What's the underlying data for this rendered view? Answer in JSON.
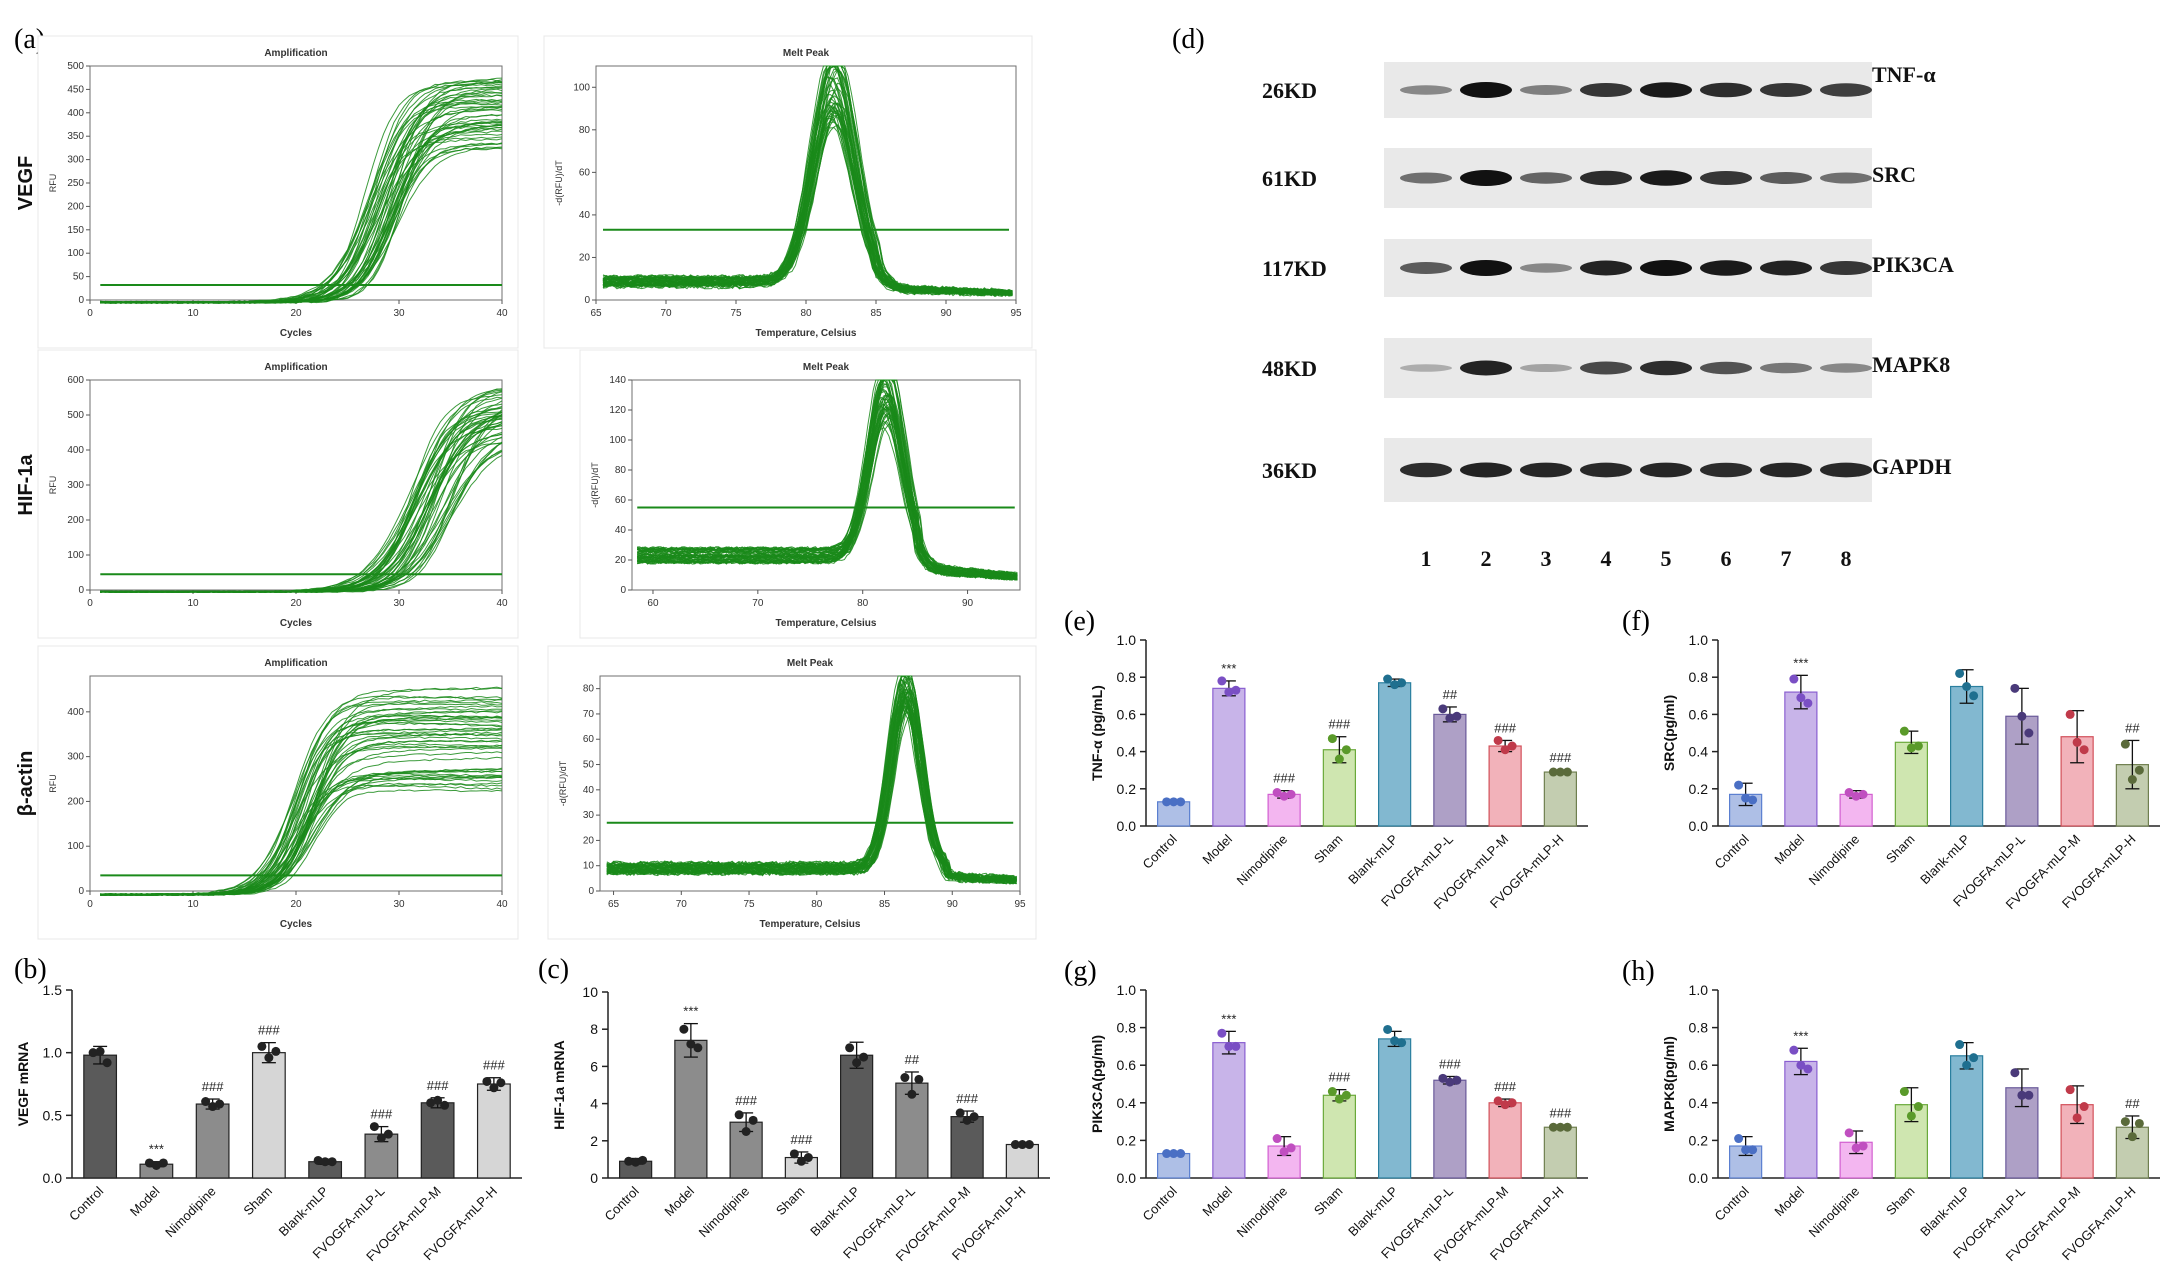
{
  "panel_labels": {
    "a": "(a)",
    "b": "(b)",
    "c": "(c)",
    "d": "(d)",
    "e": "(e)",
    "f": "(f)",
    "g": "(g)",
    "h": "(h)"
  },
  "colors": {
    "pcr_green": "#1a8a1a",
    "gray_dark": "#5a5a5a",
    "gray_mid": "#8c8c8c",
    "gray_light": "#d6d6d6",
    "control": "#aebfe6",
    "model": "#c8b4e9",
    "nimodipine": "#f3b6f0",
    "sham": "#cfe6b0",
    "blank": "#82b8d0",
    "fvo_l": "#aea0c6",
    "fvo_m": "#f2b2ba",
    "fvo_h": "#c3cdb0"
  },
  "chart_data": [
    {
      "id": "vegf-amp",
      "type": "line",
      "title": "Amplification",
      "row_label": "VEGF",
      "xlabel": "Cycles",
      "ylabel": "RFU",
      "xlim": [
        0,
        40
      ],
      "ylim": [
        0,
        500
      ],
      "xticks": [
        0,
        10,
        20,
        30,
        40
      ],
      "yticks": [
        0,
        50,
        100,
        150,
        200,
        250,
        300,
        350,
        400,
        450,
        500
      ],
      "threshold": 32,
      "baseline": -5,
      "curve": {
        "family": "sigmoid",
        "count": 48,
        "midpoint_range": [
          26.5,
          30.5
        ],
        "plateau_range": [
          330,
          480
        ],
        "slope_range": [
          1.4,
          2.2
        ]
      }
    },
    {
      "id": "vegf-melt",
      "type": "line",
      "title": "Melt Peak",
      "xlabel": "Temperature, Celsius",
      "ylabel": "-d(RFU)/dT",
      "xlim": [
        65,
        95
      ],
      "ylim": [
        0,
        110
      ],
      "xticks": [
        65,
        70,
        75,
        80,
        85,
        90,
        95
      ],
      "yticks": [
        0,
        20,
        40,
        60,
        80,
        100
      ],
      "threshold": 33,
      "curve": {
        "family": "peak",
        "count": 48,
        "baseline": [
          6,
          11
        ],
        "peak_center_range": [
          81.6,
          82.4
        ],
        "peak_height_range": [
          75,
          110
        ],
        "width": 1.5
      }
    },
    {
      "id": "hif-amp",
      "type": "line",
      "title": "Amplification",
      "row_label": "HIF-1a",
      "xlabel": "Cycles",
      "ylabel": "RFU",
      "xlim": [
        0,
        40
      ],
      "ylim": [
        0,
        600
      ],
      "xticks": [
        0,
        10,
        20,
        30,
        40
      ],
      "yticks": [
        0,
        100,
        200,
        300,
        400,
        500,
        600
      ],
      "threshold": 45,
      "baseline": -5,
      "curve": {
        "family": "sigmoid",
        "count": 48,
        "midpoint_range": [
          31,
          35.5
        ],
        "plateau_range": [
          430,
          600
        ],
        "slope_range": [
          1.5,
          2.4
        ]
      }
    },
    {
      "id": "hif-melt",
      "type": "line",
      "title": "Melt Peak",
      "xlabel": "Temperature, Celsius",
      "ylabel": "-d(RFU)/dT",
      "xlim": [
        58,
        95
      ],
      "ylim": [
        0,
        140
      ],
      "xticks": [
        60,
        70,
        80,
        90
      ],
      "yticks": [
        0,
        20,
        40,
        60,
        80,
        100,
        120,
        140
      ],
      "threshold": 55,
      "curve": {
        "family": "peak",
        "count": 48,
        "baseline": [
          18,
          28
        ],
        "peak_center_range": [
          81.8,
          82.6
        ],
        "peak_height_range": [
          90,
          132
        ],
        "width": 1.6
      }
    },
    {
      "id": "actin-amp",
      "type": "line",
      "title": "Amplification",
      "row_label": "β-actin",
      "xlabel": "Cycles",
      "ylabel": "RFU",
      "xlim": [
        0,
        40
      ],
      "ylim": [
        0,
        480
      ],
      "xticks": [
        0,
        10,
        20,
        30,
        40
      ],
      "yticks": [
        0,
        100,
        200,
        300,
        400
      ],
      "threshold": 35,
      "baseline": -8,
      "curve": {
        "family": "sigmoid",
        "count": 48,
        "midpoint_range": [
          19.5,
          22
        ],
        "plateau_range": [
          230,
          460
        ],
        "slope_range": [
          1.3,
          1.9
        ]
      }
    },
    {
      "id": "actin-melt",
      "type": "line",
      "title": "Melt Peak",
      "xlabel": "Temperature, Celsius",
      "ylabel": "-d(RFU)/dT",
      "xlim": [
        64,
        95
      ],
      "ylim": [
        0,
        85
      ],
      "xticks": [
        65,
        70,
        75,
        80,
        85,
        90,
        95
      ],
      "yticks": [
        0,
        10,
        20,
        30,
        40,
        50,
        60,
        70,
        80
      ],
      "threshold": 27,
      "curve": {
        "family": "peak",
        "count": 48,
        "baseline": [
          7,
          11
        ],
        "peak_center_range": [
          86.2,
          86.9
        ],
        "peak_height_range": [
          60,
          80
        ],
        "width": 1.1
      }
    },
    {
      "id": "b",
      "type": "bar",
      "ylabel": "VEGF mRNA",
      "ylim": [
        0,
        1.5
      ],
      "yticks": [
        0.0,
        0.5,
        1.0,
        1.5
      ],
      "scheme": "gray",
      "categories": [
        "Control",
        "Model",
        "Nimodipine",
        "Sham",
        "Blank-mLP",
        "FVOGFA-mLP-L",
        "FVOGFA-mLP-M",
        "FVOGFA-mLP-H"
      ],
      "values": [
        0.98,
        0.11,
        0.59,
        1.0,
        0.13,
        0.35,
        0.6,
        0.75
      ],
      "errors": [
        0.07,
        0.02,
        0.04,
        0.08,
        0.02,
        0.06,
        0.04,
        0.05
      ],
      "points": [
        [
          1.0,
          1.01,
          0.92
        ],
        [
          0.12,
          0.1,
          0.12
        ],
        [
          0.61,
          0.57,
          0.59
        ],
        [
          1.05,
          0.96,
          1.01
        ],
        [
          0.14,
          0.13,
          0.13
        ],
        [
          0.41,
          0.32,
          0.35
        ],
        [
          0.6,
          0.62,
          0.58
        ],
        [
          0.77,
          0.72,
          0.76
        ]
      ],
      "annotations": [
        "",
        "***",
        "###",
        "###",
        "",
        "###",
        "###",
        "###"
      ]
    },
    {
      "id": "c",
      "type": "bar",
      "ylabel": "HIF-1a mRNA",
      "ylim": [
        0,
        10
      ],
      "yticks": [
        0,
        2,
        4,
        6,
        8,
        10
      ],
      "scheme": "gray",
      "categories": [
        "Control",
        "Model",
        "Nimodipine",
        "Sham",
        "Blank-mLP",
        "FVOGFA-mLP-L",
        "FVOGFA-mLP-M",
        "FVOGFA-mLP-H"
      ],
      "values": [
        0.9,
        7.4,
        3.0,
        1.1,
        6.6,
        5.1,
        3.3,
        1.8
      ],
      "errors": [
        0.15,
        0.9,
        0.5,
        0.3,
        0.7,
        0.6,
        0.3,
        0.1
      ],
      "points": [
        [
          0.9,
          0.85,
          0.95
        ],
        [
          8.0,
          7.2,
          7.0
        ],
        [
          3.4,
          2.5,
          3.1
        ],
        [
          1.3,
          0.9,
          1.1
        ],
        [
          7.0,
          6.2,
          6.5
        ],
        [
          5.4,
          4.5,
          5.3
        ],
        [
          3.5,
          3.1,
          3.3
        ],
        [
          1.8,
          1.8,
          1.8
        ]
      ],
      "annotations": [
        "",
        "***",
        "###",
        "###",
        "",
        "##",
        "###",
        ""
      ]
    },
    {
      "id": "e",
      "type": "bar",
      "ylabel": "TNF-α (pg/mL)",
      "ylim": [
        0,
        1.0
      ],
      "yticks": [
        0.0,
        0.2,
        0.4,
        0.6,
        0.8,
        1.0
      ],
      "scheme": "color",
      "categories": [
        "Control",
        "Model",
        "Nimodipine",
        "Sham",
        "Blank-mLP",
        "FVOGFA-mLP-L",
        "FVOGFA-mLP-M",
        "FVOGFA-mLP-H"
      ],
      "values": [
        0.13,
        0.74,
        0.17,
        0.41,
        0.77,
        0.6,
        0.43,
        0.29
      ],
      "errors": [
        0.01,
        0.04,
        0.02,
        0.07,
        0.02,
        0.04,
        0.03,
        0.01
      ],
      "points": [
        [
          0.13,
          0.13,
          0.13
        ],
        [
          0.78,
          0.72,
          0.73
        ],
        [
          0.18,
          0.16,
          0.17
        ],
        [
          0.47,
          0.36,
          0.41
        ],
        [
          0.79,
          0.76,
          0.77
        ],
        [
          0.63,
          0.58,
          0.59
        ],
        [
          0.46,
          0.41,
          0.43
        ],
        [
          0.29,
          0.29,
          0.29
        ]
      ],
      "annotations": [
        "",
        "***",
        "###",
        "###",
        "",
        "##",
        "###",
        "###"
      ]
    },
    {
      "id": "f",
      "type": "bar",
      "ylabel": "SRC(pg/ml)",
      "ylim": [
        0,
        1.0
      ],
      "yticks": [
        0.0,
        0.2,
        0.4,
        0.6,
        0.8,
        1.0
      ],
      "scheme": "color",
      "categories": [
        "Control",
        "Model",
        "Nimodipine",
        "Sham",
        "Blank-mLP",
        "FVOGFA-mLP-L",
        "FVOGFA-mLP-M",
        "FVOGFA-mLP-H"
      ],
      "values": [
        0.17,
        0.72,
        0.17,
        0.45,
        0.75,
        0.59,
        0.48,
        0.33
      ],
      "errors": [
        0.06,
        0.09,
        0.02,
        0.06,
        0.09,
        0.15,
        0.14,
        0.13
      ],
      "points": [
        [
          0.22,
          0.15,
          0.14
        ],
        [
          0.79,
          0.69,
          0.66
        ],
        [
          0.18,
          0.16,
          0.17
        ],
        [
          0.51,
          0.42,
          0.43
        ],
        [
          0.82,
          0.75,
          0.7
        ],
        [
          0.74,
          0.59,
          0.5
        ],
        [
          0.6,
          0.45,
          0.41
        ],
        [
          0.44,
          0.25,
          0.3
        ]
      ],
      "annotations": [
        "",
        "***",
        "",
        "",
        "",
        "",
        "",
        "##"
      ]
    },
    {
      "id": "g",
      "type": "bar",
      "ylabel": "PIK3CA(pg/ml)",
      "ylim": [
        0,
        1.0
      ],
      "yticks": [
        0.0,
        0.2,
        0.4,
        0.6,
        0.8,
        1.0
      ],
      "scheme": "color",
      "categories": [
        "Control",
        "Model",
        "Nimodipine",
        "Sham",
        "Blank-mLP",
        "FVOGFA-mLP-L",
        "FVOGFA-mLP-M",
        "FVOGFA-mLP-H"
      ],
      "values": [
        0.13,
        0.72,
        0.17,
        0.44,
        0.74,
        0.52,
        0.4,
        0.27
      ],
      "errors": [
        0.01,
        0.06,
        0.05,
        0.03,
        0.04,
        0.02,
        0.02,
        0.01
      ],
      "points": [
        [
          0.13,
          0.13,
          0.13
        ],
        [
          0.77,
          0.7,
          0.7
        ],
        [
          0.21,
          0.14,
          0.16
        ],
        [
          0.46,
          0.42,
          0.44
        ],
        [
          0.79,
          0.73,
          0.72
        ],
        [
          0.53,
          0.51,
          0.52
        ],
        [
          0.41,
          0.39,
          0.4
        ],
        [
          0.27,
          0.27,
          0.27
        ]
      ],
      "annotations": [
        "",
        "***",
        "",
        "###",
        "",
        "###",
        "###",
        "###"
      ]
    },
    {
      "id": "h",
      "type": "bar",
      "ylabel": "MAPK8(pg/ml)",
      "ylim": [
        0,
        1.0
      ],
      "yticks": [
        0.0,
        0.2,
        0.4,
        0.6,
        0.8,
        1.0
      ],
      "scheme": "color",
      "categories": [
        "Control",
        "Model",
        "Nimodipine",
        "Sham",
        "Blank-mLP",
        "FVOGFA-mLP-L",
        "FVOGFA-mLP-M",
        "FVOGFA-mLP-H"
      ],
      "values": [
        0.17,
        0.62,
        0.19,
        0.39,
        0.65,
        0.48,
        0.39,
        0.27
      ],
      "errors": [
        0.05,
        0.07,
        0.06,
        0.09,
        0.07,
        0.1,
        0.1,
        0.06
      ],
      "points": [
        [
          0.21,
          0.15,
          0.15
        ],
        [
          0.68,
          0.6,
          0.58
        ],
        [
          0.24,
          0.16,
          0.17
        ],
        [
          0.46,
          0.33,
          0.38
        ],
        [
          0.71,
          0.6,
          0.64
        ],
        [
          0.56,
          0.44,
          0.44
        ],
        [
          0.47,
          0.32,
          0.38
        ],
        [
          0.3,
          0.22,
          0.29
        ]
      ],
      "annotations": [
        "",
        "***",
        "",
        "",
        "",
        "",
        "",
        "##"
      ]
    }
  ],
  "western_blot": {
    "bands": [
      {
        "kd": "26KD",
        "protein": "TNF-α",
        "intensity": [
          0.35,
          1.0,
          0.4,
          0.8,
          0.95,
          0.85,
          0.8,
          0.75
        ]
      },
      {
        "kd": "61KD",
        "protein": "SRC",
        "intensity": [
          0.5,
          1.0,
          0.55,
          0.85,
          0.95,
          0.8,
          0.6,
          0.5
        ]
      },
      {
        "kd": "117KD",
        "protein": "PIK3CA",
        "intensity": [
          0.6,
          1.0,
          0.35,
          0.9,
          1.0,
          0.95,
          0.9,
          0.8
        ]
      },
      {
        "kd": "48KD",
        "protein": "MAPK8",
        "intensity": [
          0.15,
          0.9,
          0.2,
          0.7,
          0.85,
          0.65,
          0.45,
          0.35
        ]
      },
      {
        "kd": "36KD",
        "protein": "GAPDH",
        "intensity": [
          0.85,
          0.9,
          0.88,
          0.87,
          0.88,
          0.86,
          0.88,
          0.87
        ]
      }
    ],
    "lanes": [
      "1",
      "2",
      "3",
      "4",
      "5",
      "6",
      "7",
      "8"
    ]
  }
}
